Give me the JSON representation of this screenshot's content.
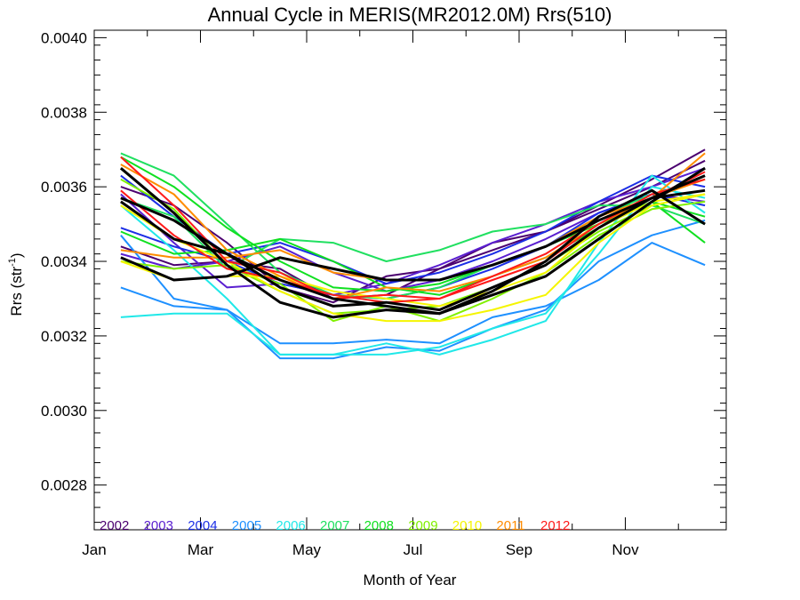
{
  "chart_data": {
    "type": "line",
    "title": "Annual Cycle in MERIS(MR2012.0M) Rrs(510)",
    "xlabel": "Month of Year",
    "ylabel": {
      "base": "Rrs (str",
      "sup": "-1",
      "tail": ")"
    },
    "x_ticks": [
      "Jan",
      "Mar",
      "May",
      "Jul",
      "Sep",
      "Nov"
    ],
    "x_tick_values": [
      1,
      3,
      5,
      7,
      9,
      11
    ],
    "xlim": [
      1,
      12.9
    ],
    "ylim": [
      0.00268,
      0.00402
    ],
    "y_ticks": [
      "0.0028",
      "0.0030",
      "0.0032",
      "0.0034",
      "0.0036",
      "0.0038",
      "0.0040"
    ],
    "y_tick_values": [
      0.0028,
      0.003,
      0.0032,
      0.0034,
      0.0036,
      0.0038,
      0.004
    ],
    "x": [
      1.5,
      2.5,
      3.5,
      4.5,
      5.5,
      6.5,
      7.5,
      8.5,
      9.5,
      10.5,
      11.5,
      12.5
    ],
    "legend": [
      {
        "label": "2002",
        "color": "#4b0070"
      },
      {
        "label": "2003",
        "color": "#5a1fd0"
      },
      {
        "label": "2004",
        "color": "#1b2ee6"
      },
      {
        "label": "2005",
        "color": "#1e90ff"
      },
      {
        "label": "2006",
        "color": "#20e8e8"
      },
      {
        "label": "2007",
        "color": "#20e060"
      },
      {
        "label": "2008",
        "color": "#10e020"
      },
      {
        "label": "2009",
        "color": "#80f000"
      },
      {
        "label": "2010",
        "color": "#f5f500"
      },
      {
        "label": "2011",
        "color": "#ff8c00"
      },
      {
        "label": "2012",
        "color": "#ff1a1a"
      }
    ],
    "series": [
      {
        "color": "#4b0070",
        "values": [
          0.0036,
          0.00355,
          0.00345,
          0.00333,
          0.00329,
          0.00336,
          0.00338,
          0.00343,
          0.00348,
          0.00355,
          0.00362,
          0.0037
        ]
      },
      {
        "color": "#4b0070",
        "values": [
          0.00344,
          0.00339,
          0.0034,
          0.00338,
          0.0033,
          0.00331,
          0.00338,
          0.00345,
          0.00348,
          0.00354,
          0.0036,
          0.00367
        ]
      },
      {
        "color": "#5a1fd0",
        "values": [
          0.00358,
          0.00345,
          0.00333,
          0.00334,
          0.00331,
          0.00334,
          0.00339,
          0.00345,
          0.0035,
          0.00356,
          0.0036,
          0.00365
        ]
      },
      {
        "color": "#5a1fd0",
        "values": [
          0.00342,
          0.00338,
          0.0034,
          0.00344,
          0.00337,
          0.00332,
          0.00335,
          0.0034,
          0.00346,
          0.00353,
          0.00358,
          0.00356
        ]
      },
      {
        "color": "#1b2ee6",
        "values": [
          0.00363,
          0.00352,
          0.00342,
          0.00345,
          0.0034,
          0.00334,
          0.00337,
          0.00342,
          0.00348,
          0.00356,
          0.00363,
          0.0036
        ]
      },
      {
        "color": "#1b2ee6",
        "values": [
          0.00349,
          0.00344,
          0.0034,
          0.00334,
          0.00331,
          0.0033,
          0.00333,
          0.00338,
          0.00344,
          0.00353,
          0.00358,
          0.00355
        ]
      },
      {
        "color": "#1e90ff",
        "values": [
          0.00333,
          0.00328,
          0.00327,
          0.00314,
          0.00314,
          0.00317,
          0.00316,
          0.00322,
          0.00327,
          0.0034,
          0.00347,
          0.00351
        ]
      },
      {
        "color": "#1e90ff",
        "values": [
          0.00347,
          0.0033,
          0.00327,
          0.00318,
          0.00318,
          0.00319,
          0.00318,
          0.00325,
          0.00328,
          0.00335,
          0.00345,
          0.00339
        ]
      },
      {
        "color": "#20e8e8",
        "values": [
          0.00325,
          0.00326,
          0.00326,
          0.00315,
          0.00315,
          0.00318,
          0.00315,
          0.00319,
          0.00324,
          0.00345,
          0.00363,
          0.00353
        ]
      },
      {
        "color": "#20e8e8",
        "values": [
          0.00355,
          0.00343,
          0.0033,
          0.00315,
          0.00315,
          0.00315,
          0.00317,
          0.00322,
          0.00326,
          0.00342,
          0.0036,
          0.00357
        ]
      },
      {
        "color": "#20e060",
        "values": [
          0.00369,
          0.00363,
          0.0035,
          0.00337,
          0.00331,
          0.0033,
          0.00333,
          0.00339,
          0.00344,
          0.00352,
          0.00358,
          0.00362
        ]
      },
      {
        "color": "#20e060",
        "values": [
          0.00357,
          0.00352,
          0.00338,
          0.00346,
          0.00345,
          0.0034,
          0.00343,
          0.00348,
          0.0035,
          0.00355,
          0.00355,
          0.0035
        ]
      },
      {
        "color": "#10e020",
        "values": [
          0.00368,
          0.0036,
          0.00349,
          0.0034,
          0.00333,
          0.00332,
          0.00334,
          0.00339,
          0.00344,
          0.0035,
          0.00356,
          0.00352
        ]
      },
      {
        "color": "#10e020",
        "values": [
          0.00348,
          0.00342,
          0.00343,
          0.00346,
          0.0034,
          0.00333,
          0.00331,
          0.00336,
          0.00341,
          0.00349,
          0.00356,
          0.00345
        ]
      },
      {
        "color": "#80f000",
        "values": [
          0.00362,
          0.00354,
          0.00339,
          0.00334,
          0.00324,
          0.00328,
          0.00324,
          0.0033,
          0.00337,
          0.00347,
          0.00354,
          0.00356
        ]
      },
      {
        "color": "#80f000",
        "values": [
          0.0034,
          0.00338,
          0.00339,
          0.00332,
          0.00326,
          0.00327,
          0.00328,
          0.00333,
          0.00339,
          0.00348,
          0.00355,
          0.00358
        ]
      },
      {
        "color": "#f5f500",
        "values": [
          0.00355,
          0.00346,
          0.0034,
          0.00332,
          0.00326,
          0.00324,
          0.00324,
          0.00327,
          0.00331,
          0.00345,
          0.00355,
          0.00358
        ]
      },
      {
        "color": "#f5f500",
        "values": [
          0.0034,
          0.00335,
          0.00336,
          0.00336,
          0.00332,
          0.0033,
          0.00328,
          0.00332,
          0.00337,
          0.00349,
          0.00356,
          0.00358
        ]
      },
      {
        "color": "#ff8c00",
        "values": [
          0.00366,
          0.00358,
          0.00343,
          0.00336,
          0.0033,
          0.00333,
          0.00332,
          0.00336,
          0.00341,
          0.0035,
          0.00357,
          0.00369
        ]
      },
      {
        "color": "#ff8c00",
        "values": [
          0.00343,
          0.00341,
          0.00341,
          0.00343,
          0.00337,
          0.00335,
          0.00335,
          0.00339,
          0.00344,
          0.00352,
          0.00357,
          0.00362
        ]
      },
      {
        "color": "#ff1a1a",
        "values": [
          0.00368,
          0.00355,
          0.0034,
          0.00337,
          0.0033,
          0.00331,
          0.0033,
          0.00335,
          0.0034,
          0.0035,
          0.00358,
          0.00362
        ]
      },
      {
        "color": "#ff1a1a",
        "values": [
          0.00359,
          0.00347,
          0.00338,
          0.00335,
          0.00331,
          0.00329,
          0.0033,
          0.00336,
          0.00342,
          0.00351,
          0.00357,
          0.00364
        ]
      },
      {
        "color": "#000000",
        "bold": true,
        "values": [
          0.00365,
          0.00353,
          0.00339,
          0.00329,
          0.00325,
          0.00327,
          0.00326,
          0.00331,
          0.00336,
          0.00346,
          0.00356,
          0.00365
        ]
      },
      {
        "color": "#000000",
        "bold": true,
        "values": [
          0.00357,
          0.00351,
          0.00342,
          0.00333,
          0.00328,
          0.00329,
          0.00327,
          0.00333,
          0.00339,
          0.00349,
          0.00357,
          0.00363
        ]
      },
      {
        "color": "#000000",
        "bold": true,
        "values": [
          0.00341,
          0.00335,
          0.00336,
          0.00341,
          0.00338,
          0.00335,
          0.00335,
          0.00339,
          0.00344,
          0.00351,
          0.00357,
          0.00359
        ]
      },
      {
        "color": "#000000",
        "bold": true,
        "values": [
          0.00356,
          0.00346,
          0.00342,
          0.00335,
          0.0033,
          0.00328,
          0.00326,
          0.00332,
          0.0034,
          0.00352,
          0.00359,
          0.0035
        ]
      }
    ]
  }
}
